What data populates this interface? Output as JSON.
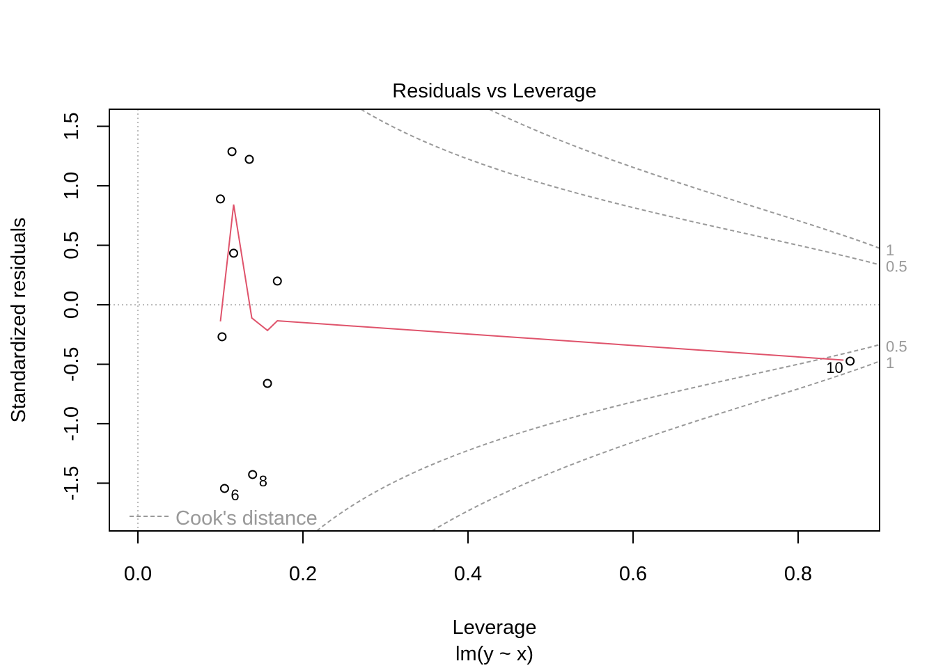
{
  "chart_data": {
    "type": "scatter",
    "title": "Residuals vs Leverage",
    "xlabel": "Leverage",
    "ylabel": "Standardized residuals",
    "subtitle": "lm(y ~ x)",
    "xlim": [
      -0.0346,
      0.8987
    ],
    "ylim": [
      -1.901,
      1.643
    ],
    "xticks": [
      0.0,
      0.2,
      0.4,
      0.6,
      0.8
    ],
    "xtick_labels": [
      "0.0",
      "0.2",
      "0.4",
      "0.6",
      "0.8"
    ],
    "yticks": [
      -1.5,
      -1.0,
      -0.5,
      0.0,
      0.5,
      1.0,
      1.5
    ],
    "ytick_labels": [
      "-1.5",
      "-1.0",
      "-0.5",
      "0.0",
      "0.5",
      "1.0",
      "1.5"
    ],
    "points": [
      {
        "x": 0.114,
        "y": 1.287,
        "label": ""
      },
      {
        "x": 0.135,
        "y": 1.222,
        "label": ""
      },
      {
        "x": 0.1,
        "y": 0.889,
        "label": ""
      },
      {
        "x": 0.116,
        "y": 0.433,
        "label": ""
      },
      {
        "x": 0.169,
        "y": 0.199,
        "label": ""
      },
      {
        "x": 0.102,
        "y": -0.269,
        "label": ""
      },
      {
        "x": 0.157,
        "y": -0.661,
        "label": ""
      },
      {
        "x": 0.139,
        "y": -1.427,
        "label": "8"
      },
      {
        "x": 0.105,
        "y": -1.544,
        "label": "6"
      },
      {
        "x": 0.863,
        "y": -0.474,
        "label": "10"
      }
    ],
    "smooth_line": {
      "color": "#DF536B",
      "x": [
        0.1,
        0.116,
        0.138,
        0.157,
        0.169,
        0.855
      ],
      "y": [
        -0.14,
        0.842,
        -0.111,
        -0.216,
        -0.135,
        -0.465
      ]
    },
    "cooks_distance": {
      "legend": "Cook's distance",
      "levels": [
        0.5,
        1
      ],
      "level_labels": [
        "1",
        "0.5",
        "0.5",
        "1"
      ],
      "n_params": 2,
      "color": "#999999"
    },
    "grid": false,
    "legend_position": "bottom-left"
  }
}
